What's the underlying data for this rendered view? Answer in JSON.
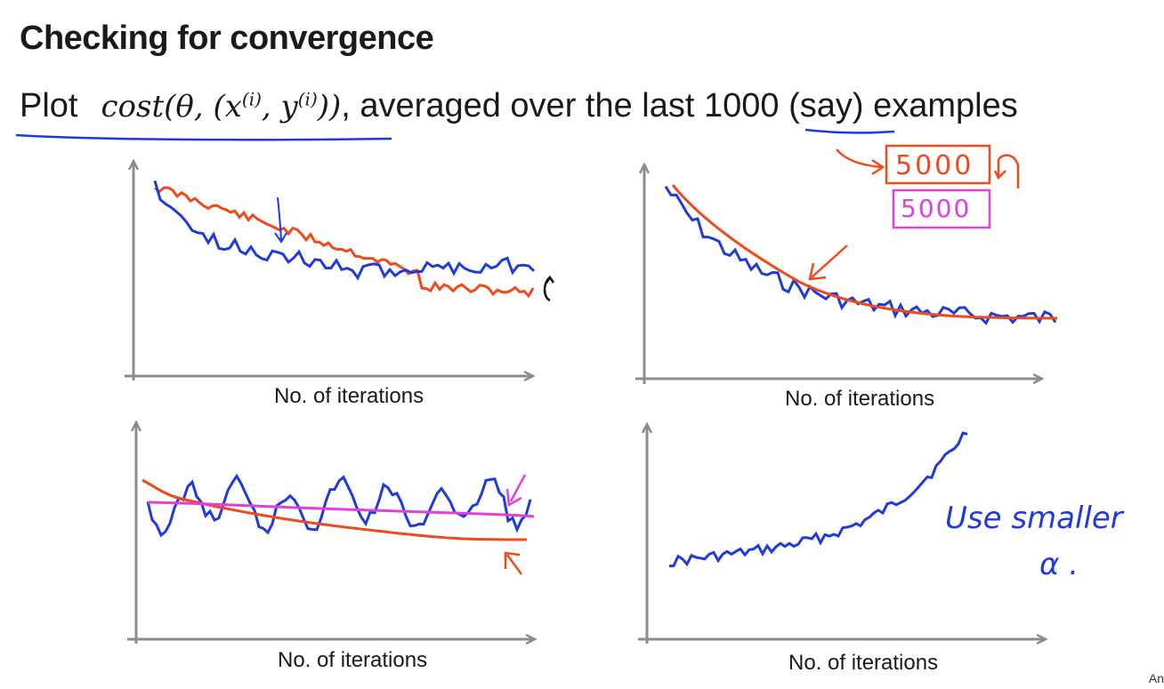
{
  "slide": {
    "title": "Checking for convergence",
    "subtitle_plot_word": "Plot",
    "subtitle_math": {
      "cost": "cost(θ, (x",
      "sup1": "(i)",
      "mid": ", y",
      "sup2": "(i)",
      "end": "))"
    },
    "subtitle_rest_a": ", averaged over the last ",
    "subtitle_number": "1000",
    "subtitle_rest_b": " (say) examples",
    "corner_text": "An"
  },
  "plots": [
    {
      "id": "top-left",
      "xlabel": "No. of iterations"
    },
    {
      "id": "top-right",
      "xlabel": "No. of iterations"
    },
    {
      "id": "bottom-left",
      "xlabel": "No. of iterations"
    },
    {
      "id": "bottom-right",
      "xlabel": "No. of iterations"
    }
  ],
  "annotations": {
    "box_red_label": "5000",
    "box_pink_label": "5000",
    "handwritten_line1": "Use smaller",
    "handwritten_line2": "α ."
  },
  "colors": {
    "axis": "#8c8c8c",
    "blue": "#1f3bdc",
    "red": "#ee4a1c",
    "magenta": "#e040e0",
    "text": "#1a1a1a"
  }
}
